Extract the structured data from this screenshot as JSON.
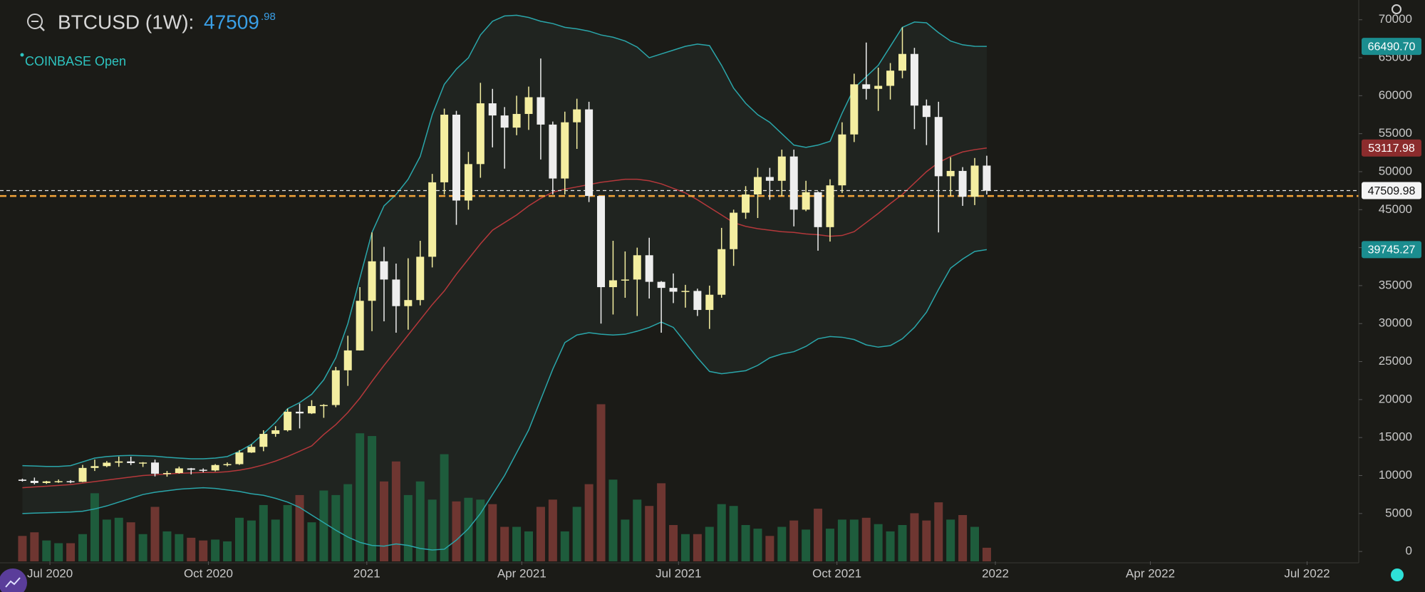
{
  "chart_data": {
    "type": "candlestick",
    "header": {
      "symbol": "BTCUSD (1W):",
      "price_int": "47509",
      "price_frac": ".98",
      "exchange": "COINBASE Open"
    },
    "x": [
      "2020-06-15",
      "2020-06-22",
      "2020-06-29",
      "2020-07-06",
      "2020-07-13",
      "2020-07-20",
      "2020-07-27",
      "2020-08-03",
      "2020-08-10",
      "2020-08-17",
      "2020-08-24",
      "2020-08-31",
      "2020-09-07",
      "2020-09-14",
      "2020-09-21",
      "2020-09-28",
      "2020-10-05",
      "2020-10-12",
      "2020-10-19",
      "2020-10-26",
      "2020-11-02",
      "2020-11-09",
      "2020-11-16",
      "2020-11-23",
      "2020-11-30",
      "2020-12-07",
      "2020-12-14",
      "2020-12-21",
      "2020-12-28",
      "2021-01-04",
      "2021-01-11",
      "2021-01-18",
      "2021-01-25",
      "2021-02-01",
      "2021-02-08",
      "2021-02-15",
      "2021-02-22",
      "2021-03-01",
      "2021-03-08",
      "2021-03-15",
      "2021-03-22",
      "2021-03-29",
      "2021-04-05",
      "2021-04-12",
      "2021-04-19",
      "2021-04-26",
      "2021-05-03",
      "2021-05-10",
      "2021-05-17",
      "2021-05-24",
      "2021-05-31",
      "2021-06-07",
      "2021-06-14",
      "2021-06-21",
      "2021-06-28",
      "2021-07-05",
      "2021-07-12",
      "2021-07-19",
      "2021-07-26",
      "2021-08-02",
      "2021-08-09",
      "2021-08-16",
      "2021-08-23",
      "2021-08-30",
      "2021-09-06",
      "2021-09-13",
      "2021-09-20",
      "2021-09-27",
      "2021-10-04",
      "2021-10-11",
      "2021-10-18",
      "2021-10-25",
      "2021-11-01",
      "2021-11-08",
      "2021-11-15",
      "2021-11-22",
      "2021-11-29",
      "2021-12-06",
      "2021-12-13",
      "2021-12-20",
      "2021-12-27"
    ],
    "open": [
      9460,
      9300,
      9020,
      9230,
      9250,
      9170,
      11000,
      11240,
      11690,
      11860,
      11640,
      11710,
      10240,
      10330,
      10940,
      10760,
      10670,
      11380,
      11500,
      13030,
      13780,
      15480,
      15960,
      18400,
      18180,
      19150,
      19280,
      23850,
      26470,
      33000,
      38200,
      35800,
      32300,
      33100,
      38800,
      48600,
      57500,
      46200,
      51000,
      59000,
      57400,
      55800,
      57600,
      59800,
      56200,
      49100,
      56500,
      58200,
      46800,
      34800,
      35700,
      35800,
      39000,
      35500,
      34700,
      34200,
      34300,
      31800,
      33800,
      39800,
      44600,
      47000,
      49300,
      48800,
      52000,
      45000,
      47300,
      42700,
      48200,
      54900,
      61500,
      60900,
      61300,
      63300,
      65500,
      58700,
      57200,
      49400,
      50100,
      46700,
      50800
    ],
    "high": [
      9590,
      9730,
      9300,
      9480,
      9400,
      11400,
      12100,
      11900,
      12490,
      12480,
      11770,
      12090,
      10600,
      11180,
      11000,
      10940,
      11500,
      11720,
      13350,
      14100,
      15960,
      16500,
      18800,
      19480,
      19920,
      19400,
      24300,
      28400,
      34800,
      42000,
      40100,
      37900,
      38600,
      40900,
      49700,
      58300,
      58000,
      52600,
      61700,
      60900,
      58500,
      60000,
      61200,
      64900,
      56600,
      57900,
      59600,
      59200,
      46800,
      40900,
      39500,
      40000,
      41300,
      35600,
      36600,
      35100,
      34600,
      35000,
      42600,
      45000,
      48100,
      50500,
      50500,
      52900,
      52900,
      48800,
      47400,
      49000,
      56500,
      62900,
      67000,
      63700,
      64300,
      69000,
      66300,
      59500,
      59200,
      51900,
      50600,
      51800,
      52100
    ],
    "low": [
      9200,
      8830,
      8900,
      9040,
      9000,
      9130,
      10600,
      11100,
      11150,
      11380,
      11130,
      9880,
      9850,
      10250,
      10150,
      10420,
      10540,
      11200,
      11400,
      12980,
      13200,
      15100,
      15800,
      16200,
      18100,
      17600,
      19000,
      21800,
      26450,
      29000,
      30300,
      28800,
      29200,
      32400,
      37400,
      47000,
      43000,
      45000,
      49200,
      53200,
      50400,
      54800,
      55500,
      51600,
      47000,
      47000,
      53000,
      46000,
      30000,
      31200,
      33400,
      31000,
      33300,
      28800,
      32700,
      32100,
      31000,
      29300,
      33400,
      37600,
      43800,
      43900,
      46300,
      46800,
      42800,
      44800,
      39600,
      40800,
      47200,
      53900,
      59500,
      58000,
      59500,
      62300,
      55600,
      53500,
      42000,
      46800,
      45500,
      45600,
      47000
    ],
    "close": [
      9300,
      9020,
      9230,
      9250,
      9170,
      11000,
      11240,
      11690,
      11860,
      11640,
      11710,
      10240,
      10330,
      10940,
      10760,
      10670,
      11380,
      11500,
      13030,
      13780,
      15480,
      15960,
      18400,
      18180,
      19150,
      19280,
      23850,
      26470,
      33000,
      38200,
      35800,
      32300,
      33100,
      38800,
      48600,
      57500,
      46200,
      51000,
      59000,
      57400,
      55800,
      57600,
      59800,
      56200,
      49100,
      56500,
      58200,
      46800,
      34800,
      35700,
      35800,
      39000,
      35500,
      34700,
      34200,
      34300,
      31800,
      33800,
      39800,
      44600,
      47000,
      49300,
      48800,
      52000,
      45000,
      47300,
      42700,
      48200,
      54900,
      61500,
      60900,
      61300,
      63300,
      65500,
      58700,
      57200,
      49400,
      50100,
      46700,
      50800,
      47509.98
    ],
    "up_color": "#f4eea0",
    "down_color": "#eeeeee",
    "volume": [
      28,
      32,
      23,
      20,
      20,
      30,
      75,
      46,
      48,
      43,
      30,
      60,
      33,
      30,
      26,
      23,
      24,
      22,
      48,
      45,
      62,
      46,
      62,
      73,
      43,
      78,
      73,
      85,
      141,
      138,
      88,
      110,
      73,
      88,
      68,
      118,
      66,
      70,
      68,
      63,
      38,
      38,
      33,
      60,
      68,
      33,
      60,
      85,
      173,
      90,
      46,
      68,
      61,
      86,
      40,
      30,
      30,
      38,
      63,
      61,
      40,
      36,
      28,
      38,
      45,
      35,
      58,
      36,
      46,
      46,
      48,
      41,
      33,
      40,
      53,
      45,
      65,
      46,
      51,
      38,
      15
    ],
    "vlim": [
      0,
      600
    ],
    "volume_up_color": "#1e5c3c",
    "volume_down_color": "#6e3631",
    "bands": {
      "upper": [
        11300,
        11250,
        11200,
        11200,
        11300,
        11800,
        12300,
        12500,
        12600,
        12650,
        12600,
        12550,
        12400,
        12300,
        12200,
        12200,
        12300,
        12500,
        13200,
        14100,
        15500,
        17000,
        18800,
        19600,
        20700,
        22600,
        25500,
        30000,
        36000,
        42000,
        45500,
        47000,
        49000,
        52000,
        57500,
        61500,
        63500,
        65000,
        68000,
        69800,
        70500,
        70600,
        70300,
        69800,
        69500,
        69000,
        68800,
        68500,
        68000,
        67700,
        67200,
        66400,
        65000,
        65500,
        66000,
        66500,
        66800,
        66600,
        64000,
        61000,
        59000,
        57500,
        56500,
        55000,
        53500,
        53200,
        53500,
        54000,
        57700,
        61000,
        62500,
        64000,
        66500,
        69000,
        69700,
        69600,
        68300,
        67200,
        66700,
        66500,
        66490.7
      ],
      "middle": [
        8400,
        8500,
        8600,
        8700,
        8800,
        9000,
        9200,
        9400,
        9600,
        9800,
        10000,
        10100,
        10200,
        10300,
        10350,
        10400,
        10400,
        10500,
        10700,
        11000,
        11400,
        11900,
        12500,
        13200,
        13900,
        15400,
        16700,
        18300,
        20200,
        22400,
        24500,
        26500,
        28500,
        30500,
        32500,
        34300,
        36500,
        38500,
        40500,
        42300,
        43300,
        44300,
        45500,
        46500,
        47300,
        47700,
        48000,
        48300,
        48600,
        48800,
        49000,
        49000,
        48800,
        48400,
        47800,
        47200,
        46300,
        45300,
        44300,
        43300,
        42800,
        42500,
        42300,
        42100,
        42000,
        41800,
        41700,
        41500,
        41600,
        42100,
        43300,
        44500,
        45800,
        47000,
        48500,
        50000,
        51200,
        52000,
        52600,
        52900,
        53117.98
      ],
      "lower": [
        5000,
        5050,
        5100,
        5150,
        5200,
        5300,
        5600,
        6000,
        6500,
        7000,
        7500,
        7800,
        8000,
        8200,
        8300,
        8400,
        8300,
        8100,
        7900,
        7600,
        7400,
        7000,
        6500,
        5800,
        4800,
        3800,
        2800,
        1900,
        1200,
        800,
        700,
        1000,
        800,
        400,
        200,
        300,
        1500,
        3000,
        5000,
        7500,
        10000,
        13000,
        16000,
        20000,
        24000,
        27500,
        28500,
        28800,
        28600,
        28500,
        28600,
        29000,
        29500,
        30200,
        29500,
        27500,
        25500,
        23700,
        23400,
        23600,
        23800,
        24500,
        25500,
        26000,
        26300,
        27000,
        28000,
        28300,
        28200,
        27900,
        27200,
        26900,
        27100,
        28000,
        29500,
        31500,
        34500,
        37300,
        38500,
        39500,
        39745.27
      ],
      "upper_label": "66490.70",
      "outer_color": "#2aa6aa",
      "middle_color": "#b5383b",
      "fill_color": "#202420"
    },
    "level": 46800,
    "level_color": "#f2a43a",
    "xlim": [
      "2020-06-02",
      "2022-07-31"
    ],
    "xticks": [
      {
        "value": "2020-07-01",
        "label": "Jul 2020"
      },
      {
        "value": "2020-10-01",
        "label": "Oct 2020"
      },
      {
        "value": "2021-01-01",
        "label": "2021"
      },
      {
        "value": "2021-04-01",
        "label": "Apr 2021"
      },
      {
        "value": "2021-07-01",
        "label": "Jul 2021"
      },
      {
        "value": "2021-10-01",
        "label": "Oct 2021"
      },
      {
        "value": "2022-01-01",
        "label": "2022"
      },
      {
        "value": "2022-04-01",
        "label": "Apr 2022"
      },
      {
        "value": "2022-07-01",
        "label": "Jul 2022"
      }
    ],
    "ylim": [
      -1300,
      72600
    ],
    "yticks": [
      0,
      5000,
      10000,
      15000,
      20000,
      25000,
      30000,
      35000,
      40000,
      45000,
      50000,
      55000,
      60000,
      65000,
      70000
    ]
  }
}
